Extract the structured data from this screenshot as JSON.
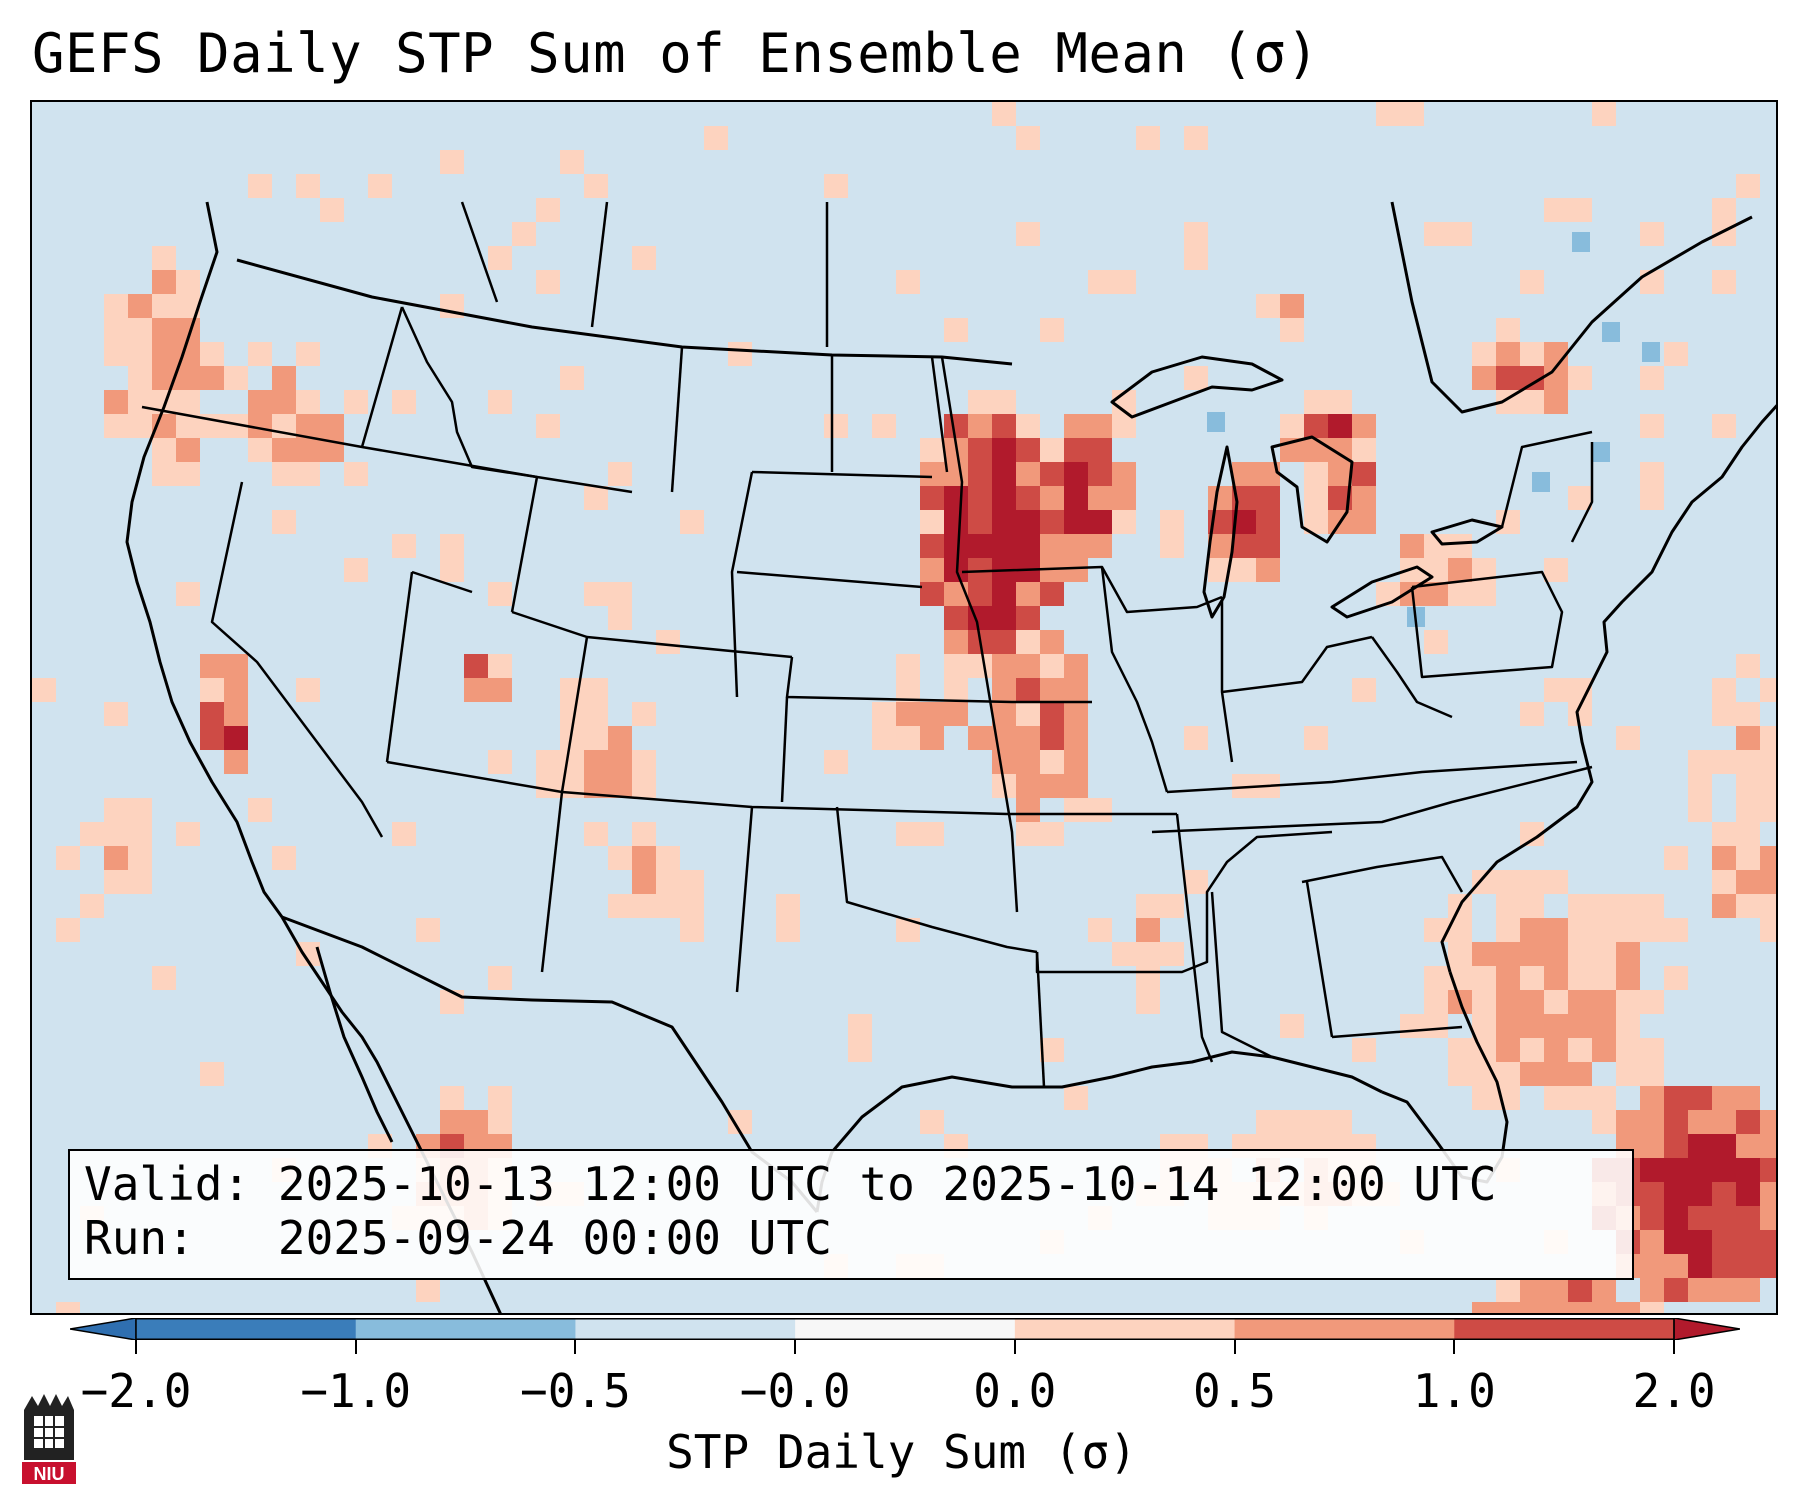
{
  "title": "GEFS Daily STP Sum of Ensemble Mean (σ)",
  "info": {
    "valid_label": "Valid:",
    "valid_value": "2025-10-13 12:00 UTC to 2025-10-14 12:00 UTC",
    "run_label": "Run:",
    "run_value": "2025-09-24 00:00 UTC"
  },
  "colorbar": {
    "label": "STP Daily Sum (σ)",
    "ticks": [
      "−2.0",
      "−1.0",
      "−0.5",
      "−0.0",
      "0.0",
      "0.5",
      "1.0",
      "2.0"
    ],
    "colors": [
      "#3a7dba",
      "#88bcdc",
      "#d0e3ef",
      "#f7f7f7",
      "#fdd3bf",
      "#f1997b",
      "#ce4b45",
      "#b11a2c"
    ],
    "extend": "both"
  },
  "logo": {
    "text": "NIU",
    "accent": "#c8102e"
  },
  "map": {
    "region": "Contiguous United States",
    "background_color": "#d0e3ef",
    "max_anomaly_areas": [
      "Minnesota",
      "Iowa",
      "Wisconsin",
      "Michigan",
      "Southern Ontario",
      "Western Atlantic"
    ]
  }
}
